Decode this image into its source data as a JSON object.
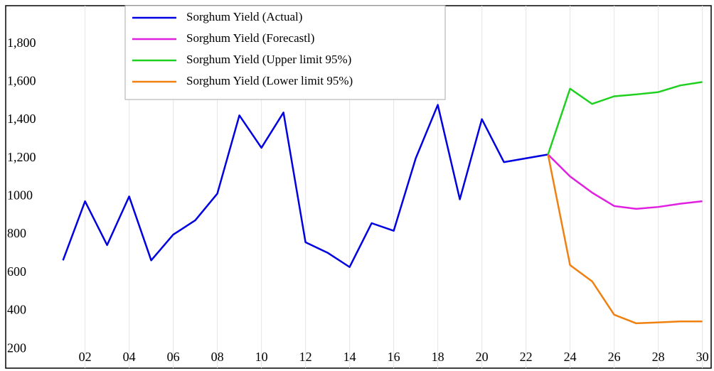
{
  "chart_data": {
    "type": "line",
    "x": [
      2001,
      2002,
      2003,
      2004,
      2005,
      2006,
      2007,
      2008,
      2009,
      2010,
      2011,
      2012,
      2013,
      2014,
      2015,
      2016,
      2017,
      2018,
      2019,
      2020,
      2021,
      2022,
      2023,
      2024,
      2025,
      2026,
      2027,
      2028,
      2029,
      2030
    ],
    "series": [
      {
        "name": "Sorghum Yield (Actual)",
        "color": "#0000e0",
        "values": [
          665,
          975,
          745,
          1000,
          665,
          800,
          875,
          1015,
          1425,
          1255,
          1440,
          760,
          705,
          630,
          860,
          820,
          1200,
          1480,
          985,
          1405,
          1180,
          1200,
          1220,
          null,
          null,
          null,
          null,
          null,
          null,
          null
        ]
      },
      {
        "name": "Sorghum Yield (Forecastl)",
        "color": "#e020e0",
        "values": [
          null,
          null,
          null,
          null,
          null,
          null,
          null,
          null,
          null,
          null,
          null,
          null,
          null,
          null,
          null,
          null,
          null,
          null,
          null,
          null,
          null,
          null,
          1220,
          1105,
          1020,
          950,
          935,
          945,
          962,
          975
        ]
      },
      {
        "name": "Sorghum Yield (Upper limit 95%)",
        "color": "#20d020",
        "values": [
          null,
          null,
          null,
          null,
          null,
          null,
          null,
          null,
          null,
          null,
          null,
          null,
          null,
          null,
          null,
          null,
          null,
          null,
          null,
          null,
          null,
          null,
          1220,
          1565,
          1485,
          1525,
          1535,
          1547,
          1582,
          1600
        ]
      },
      {
        "name": "Sorghum Yield (Lower limit 95%)",
        "color": "#f08010",
        "values": [
          null,
          null,
          null,
          null,
          null,
          null,
          null,
          null,
          null,
          null,
          null,
          null,
          null,
          null,
          null,
          null,
          null,
          null,
          null,
          null,
          null,
          null,
          1220,
          640,
          555,
          380,
          335,
          340,
          345,
          345
        ]
      }
    ],
    "xlim": [
      1998.4,
      2030.4
    ],
    "xticks": [
      {
        "value": 2002,
        "label": "02"
      },
      {
        "value": 2004,
        "label": "04"
      },
      {
        "value": 2006,
        "label": "06"
      },
      {
        "value": 2008,
        "label": "08"
      },
      {
        "value": 2010,
        "label": "10"
      },
      {
        "value": 2012,
        "label": "12"
      },
      {
        "value": 2014,
        "label": "14"
      },
      {
        "value": 2016,
        "label": "16"
      },
      {
        "value": 2018,
        "label": "18"
      },
      {
        "value": 2020,
        "label": "20"
      },
      {
        "value": 2022,
        "label": "22"
      },
      {
        "value": 2024,
        "label": "24"
      },
      {
        "value": 2026,
        "label": "26"
      },
      {
        "value": 2028,
        "label": "28"
      },
      {
        "value": 2030,
        "label": "30"
      }
    ],
    "ylim": [
      100,
      2000
    ],
    "yticks": [
      200,
      400,
      600,
      800,
      1000,
      {
        "value": 1200,
        "label": "1,200"
      },
      {
        "value": 1400,
        "label": "1,400"
      },
      {
        "value": 1600,
        "label": "1,600"
      },
      {
        "value": 1800,
        "label": "1,800"
      }
    ],
    "grid": true
  }
}
